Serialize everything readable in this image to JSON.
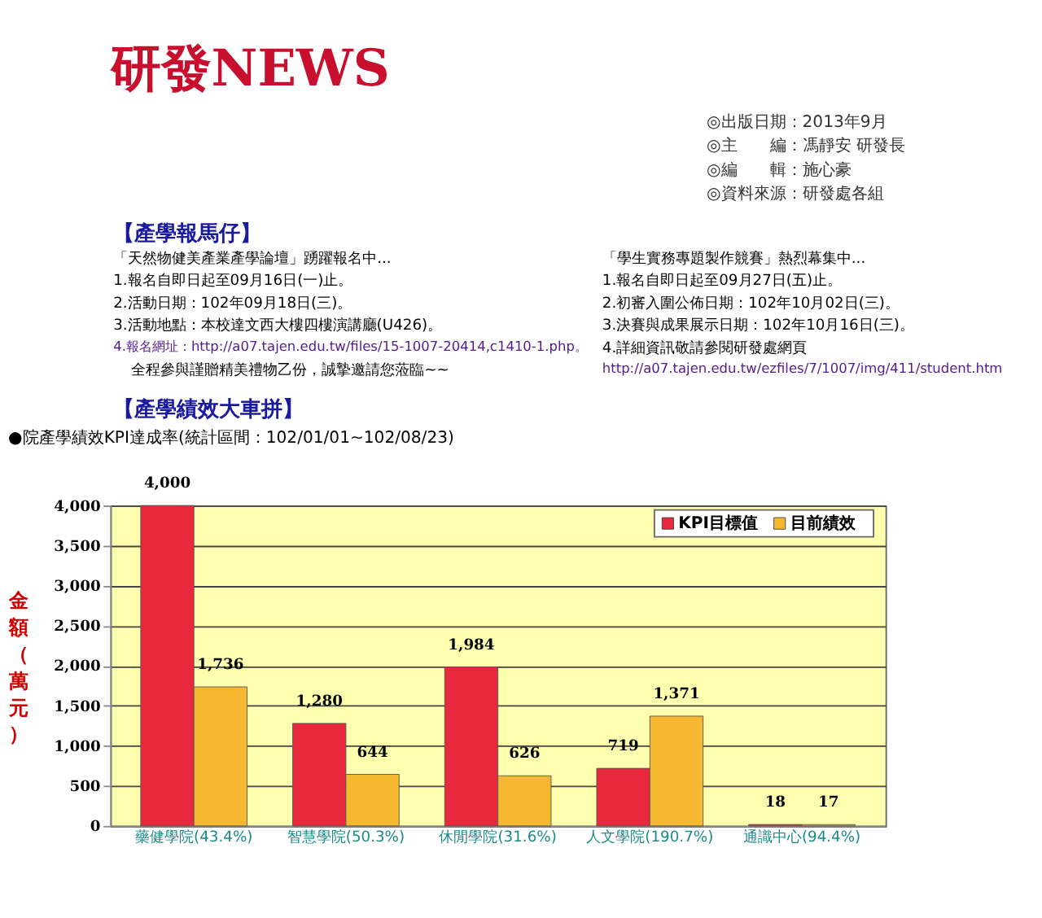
{
  "chart_data": {
    "type": "bar",
    "title": "研發NEWS",
    "subtitle": "●院產學績效KPI達成率(統計區間：102/01/01~102/08/23)",
    "ylabel": "金額（萬元）",
    "categories": [
      "藥健學院(43.4%)",
      "智慧學院(50.3%)",
      "休閒學院(31.6%)",
      "人文學院(190.7%)",
      "通識中心(94.4%)"
    ],
    "series": [
      {
        "name": "KPI目標值",
        "color": "#e8283c",
        "values": [
          4000,
          1280,
          1984,
          719,
          18
        ]
      },
      {
        "name": "目前績效",
        "color": "#f5b830",
        "values": [
          1736,
          644,
          626,
          1371,
          17
        ]
      }
    ],
    "ylim": [
      0,
      4000
    ],
    "yticks": [
      {
        "value": 0,
        "label": "0"
      },
      {
        "value": 500,
        "label": "500"
      },
      {
        "value": 1000,
        "label": "1,000"
      },
      {
        "value": 1500,
        "label": "1,500"
      },
      {
        "value": 2000,
        "label": "2,000"
      },
      {
        "value": 2500,
        "label": "2,500"
      },
      {
        "value": 3000,
        "label": "3,000"
      },
      {
        "value": 3500,
        "label": "3,500"
      },
      {
        "value": 4000,
        "label": "4,000"
      }
    ],
    "value_labels": [
      [
        "4,000",
        "1,280",
        "1,984",
        "719",
        "18"
      ],
      [
        "1,736",
        "644",
        "626",
        "1,371",
        "17"
      ]
    ],
    "grid": "y",
    "legend": "top right",
    "annotations": [
      "◎出版日期：2013年9月",
      "◎主　　編：馮靜安 研發長",
      "◎編　　輯：施心豪",
      "◎資料來源：研發處各組",
      "【產學報馬仔】",
      "「天然物健美產業產學論壇」踴躍報名中...",
      "1.報名自即日起至09月16日(一)止。",
      "2.活動日期：102年09月18日(三)。",
      "3.活動地點：本校達文西大樓四樓演講廳(U426)。",
      "4.報名網址：http://a07.tajen.edu.tw/files/15-1007-20414,c1410-1.php。",
      "全程參與謹贈精美禮物乙份，誠摯邀請您蒞臨~~",
      "「學生實務專題製作競賽」熱烈幕集中...",
      "1.報名自即日起至09月27日(五)止。",
      "2.初審入圍公佈日期：102年10月02日(三)。",
      "3.決賽與成果展示日期：102年10月16日(三)。",
      "4.詳細資訊敬請參閱研發處網頁",
      "http://a07.tajen.edu.tw/ezfiles/7/1007/img/411/student.htm",
      "【產學績效大車拼】"
    ]
  }
}
